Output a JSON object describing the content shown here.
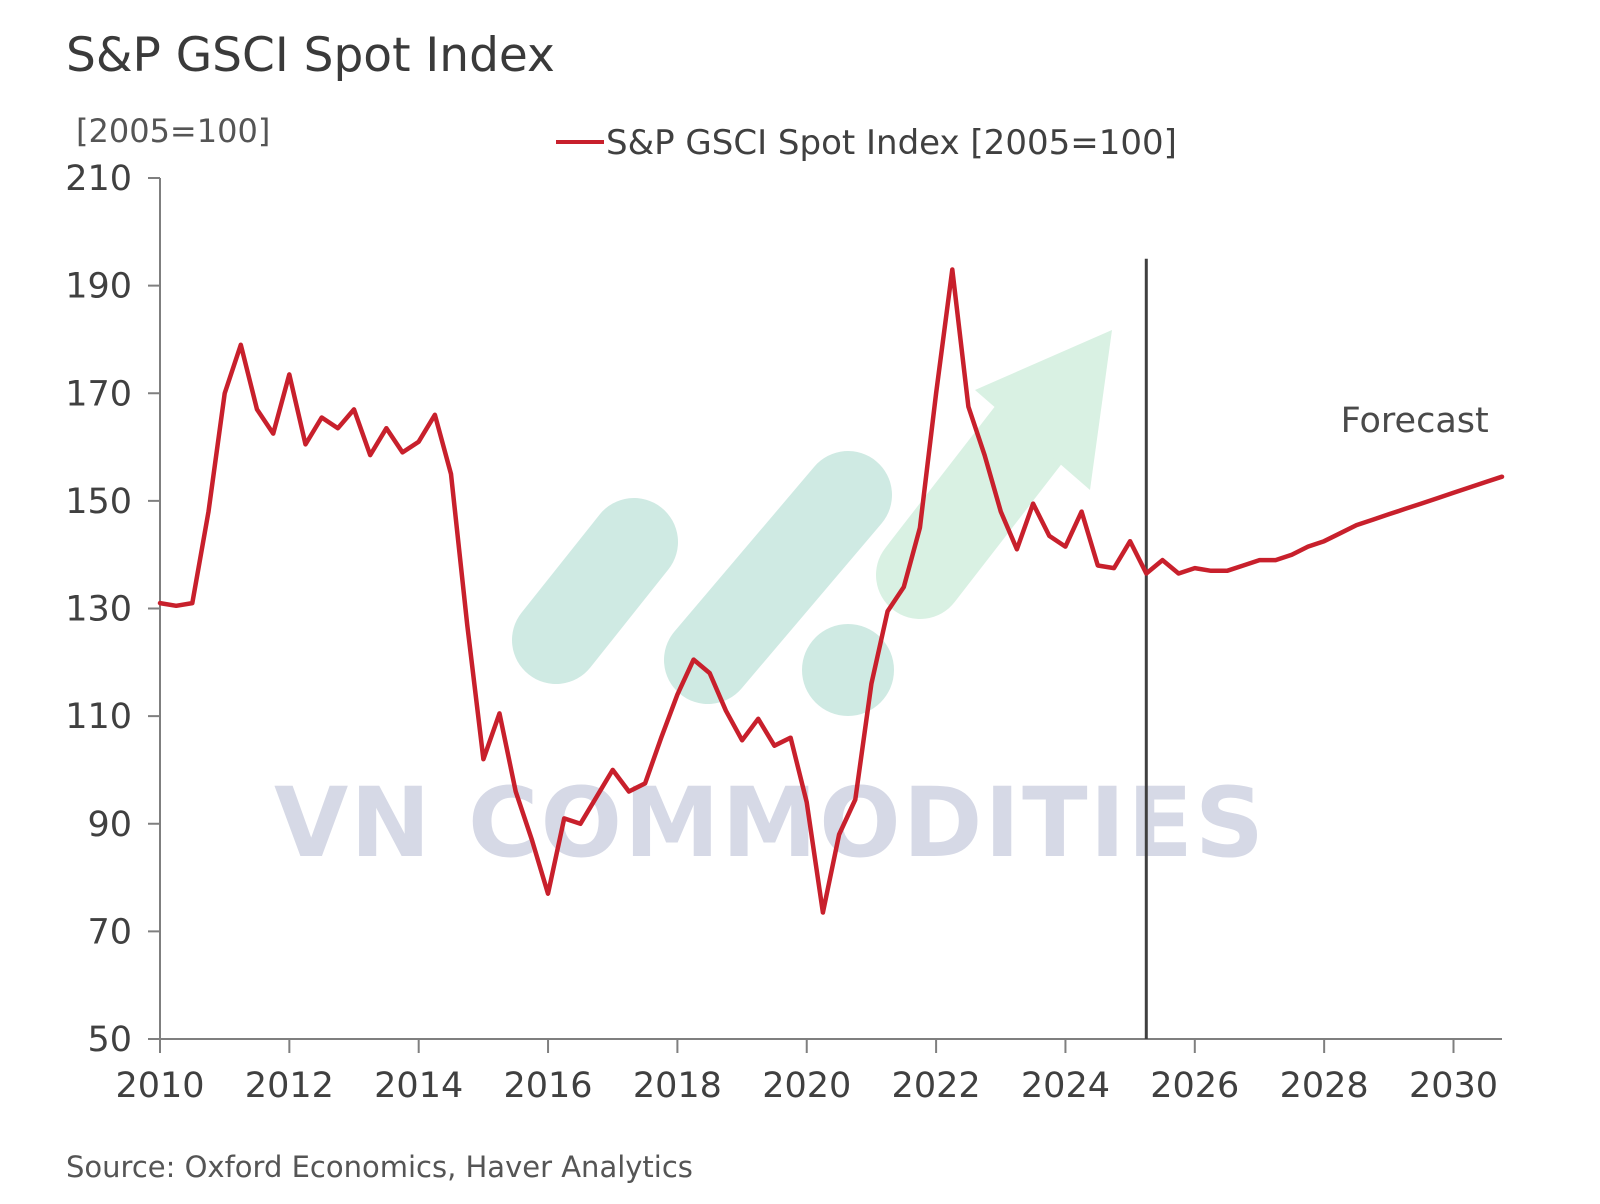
{
  "title": "S&P GSCI Spot Index",
  "source": "Source: Oxford Economics, Haver Analytics",
  "watermark": "VN COMMODITIES",
  "colors": {
    "series": "#c8202c",
    "axis": "#7f7f7f",
    "forecast_line": "#404040",
    "watermark_green": "#d8f0e2",
    "watermark_teal": "#cde9e1",
    "watermark_text": "#d6d9e6"
  },
  "chart_data": {
    "type": "line",
    "title": "S&P GSCI Spot Index",
    "ylabel": "[2005=100]",
    "xlabel": "",
    "xlim": [
      2010,
      2030.75
    ],
    "ylim": [
      50,
      210
    ],
    "yticks": [
      50,
      70,
      90,
      110,
      130,
      150,
      170,
      190,
      210
    ],
    "xticks": [
      2010,
      2012,
      2014,
      2016,
      2018,
      2020,
      2022,
      2024,
      2026,
      2028,
      2030
    ],
    "legend": {
      "position": "top-center",
      "entries": [
        "S&P GSCI Spot Index [2005=100]"
      ]
    },
    "annotations": [
      {
        "text": "Forecast",
        "x": 2029.4,
        "y": 165
      }
    ],
    "forecast_start": 2025.25,
    "series": [
      {
        "name": "S&P GSCI Spot Index [2005=100]",
        "x": [
          2010.0,
          2010.25,
          2010.5,
          2010.75,
          2011.0,
          2011.25,
          2011.5,
          2011.75,
          2012.0,
          2012.25,
          2012.5,
          2012.75,
          2013.0,
          2013.25,
          2013.5,
          2013.75,
          2014.0,
          2014.25,
          2014.5,
          2014.75,
          2015.0,
          2015.25,
          2015.5,
          2015.75,
          2016.0,
          2016.25,
          2016.5,
          2016.75,
          2017.0,
          2017.25,
          2017.5,
          2017.75,
          2018.0,
          2018.25,
          2018.5,
          2018.75,
          2019.0,
          2019.25,
          2019.5,
          2019.75,
          2020.0,
          2020.25,
          2020.5,
          2020.75,
          2021.0,
          2021.25,
          2021.5,
          2021.75,
          2022.0,
          2022.25,
          2022.5,
          2022.75,
          2023.0,
          2023.25,
          2023.5,
          2023.75,
          2024.0,
          2024.25,
          2024.5,
          2024.75,
          2025.0,
          2025.25,
          2025.5,
          2025.75,
          2026.0,
          2026.25,
          2026.5,
          2026.75,
          2027.0,
          2027.25,
          2027.5,
          2027.75,
          2028.0,
          2028.25,
          2028.5,
          2028.75,
          2029.0,
          2029.25,
          2029.5,
          2029.75,
          2030.0,
          2030.25,
          2030.5,
          2030.75
        ],
        "values": [
          131,
          130.5,
          131,
          148,
          170,
          179,
          167,
          162.5,
          173.5,
          160.5,
          165.5,
          163.5,
          167,
          158.5,
          163.5,
          159,
          161,
          166,
          155,
          127,
          102,
          110.5,
          96,
          87,
          77,
          91,
          90,
          95,
          100,
          96,
          97.5,
          106,
          114,
          120.5,
          118,
          111,
          105.5,
          109.5,
          104.5,
          106,
          94,
          73.5,
          88,
          94.5,
          116,
          129.5,
          134,
          145,
          170,
          193,
          167.5,
          158.5,
          148,
          141,
          149.5,
          143.5,
          141.5,
          148,
          138,
          137.5,
          142.5,
          136.5,
          139,
          136.5,
          137.5,
          137,
          137,
          138,
          139,
          139,
          140,
          141.5,
          142.5,
          144,
          145.5,
          146.5,
          147.5,
          148.5,
          149.5,
          150.5,
          151.5,
          152.5,
          153.5,
          154.5
        ]
      }
    ]
  }
}
